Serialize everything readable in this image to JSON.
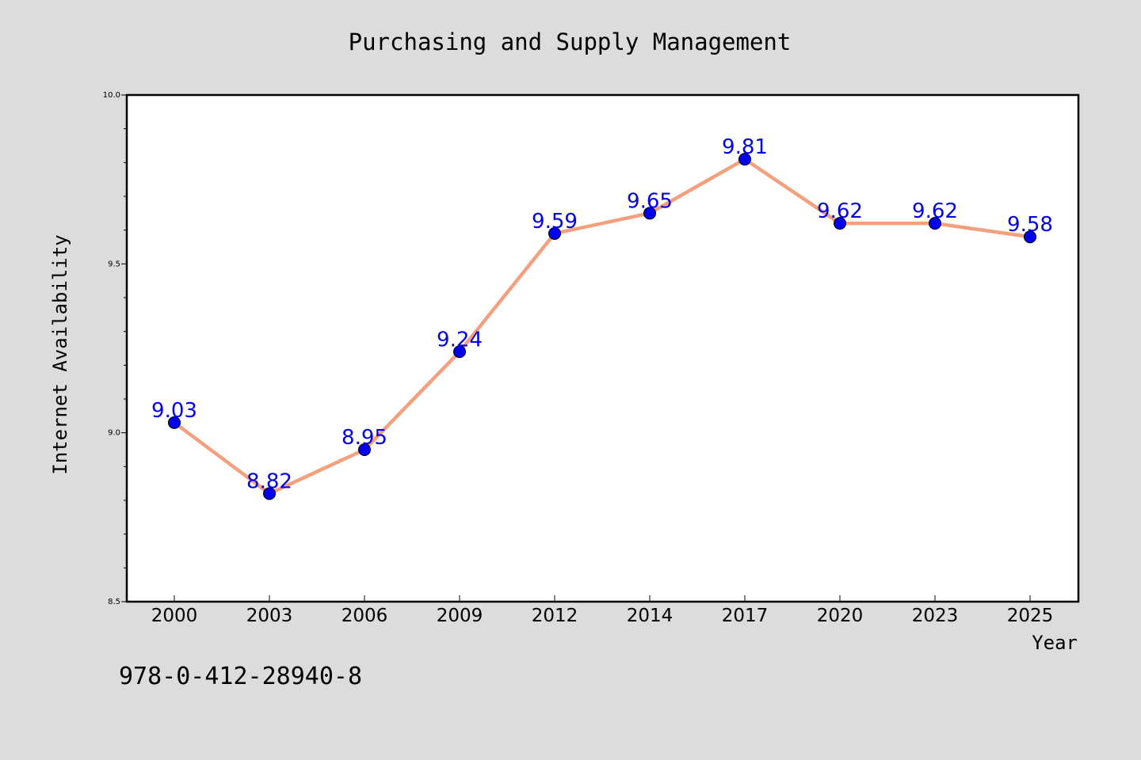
{
  "chart_data": {
    "type": "line",
    "title": "Purchasing and Supply Management",
    "xlabel": "Year",
    "ylabel": "Internet Availability",
    "categories": [
      "2000",
      "2003",
      "2006",
      "2009",
      "2012",
      "2014",
      "2017",
      "2020",
      "2023",
      "2025"
    ],
    "series": [
      {
        "values": [
          9.03,
          8.82,
          8.95,
          9.24,
          9.59,
          9.65,
          9.81,
          9.62,
          9.62,
          9.58
        ],
        "labels": [
          "9.03",
          "8.82",
          "8.95",
          "9.24",
          "9.59",
          "9.65",
          "9.81",
          "9.62",
          "9.62",
          "9.58"
        ],
        "line_color": "#f4a07e",
        "marker_color": "#0000ee",
        "label_color": "#0000ee"
      }
    ],
    "ylim": [
      8.5,
      10.0
    ],
    "yticks": [
      "8.5",
      "9.0",
      "9.5",
      "10.0"
    ],
    "grid": false,
    "legend": "none"
  },
  "footnote": "978-0-412-28940-8",
  "colors": {
    "background": "#dcdcdc",
    "plot_background": "#ffffff",
    "axis": "#000000"
  }
}
